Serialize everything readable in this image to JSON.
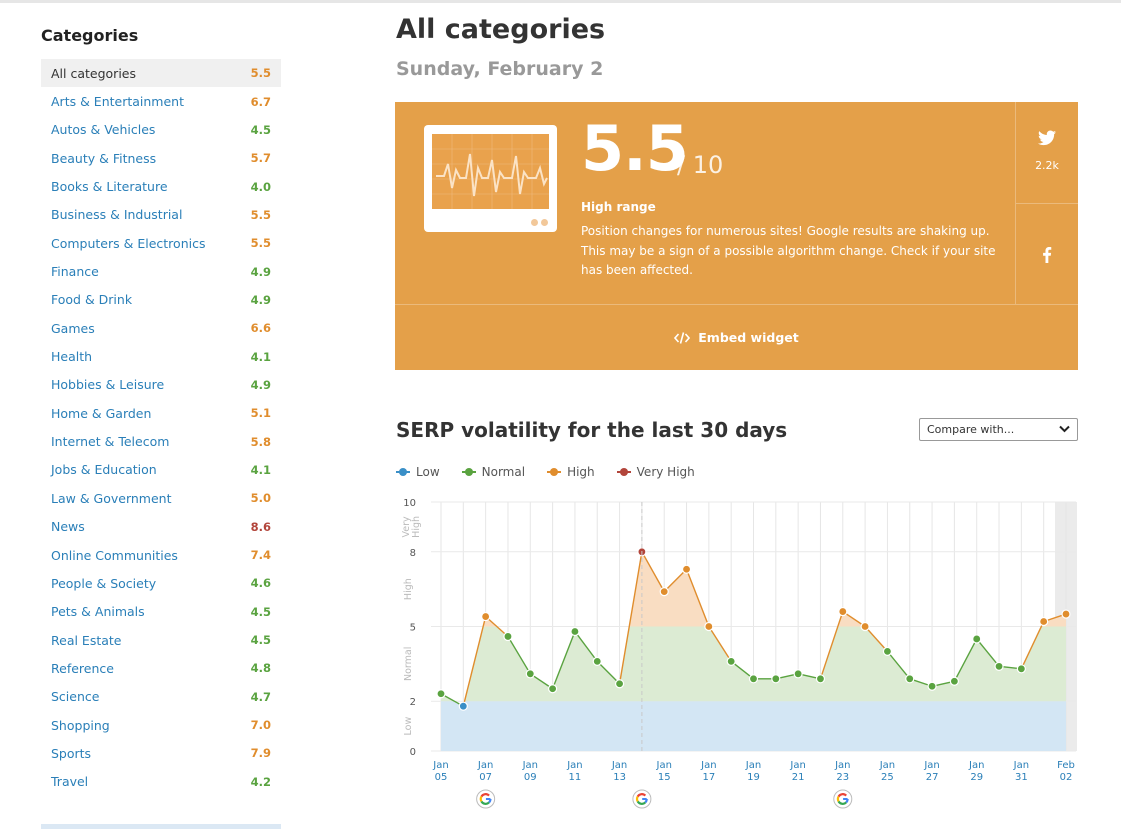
{
  "sidebar": {
    "title": "Categories",
    "items": [
      {
        "label": "All categories",
        "score": "5.5",
        "level": "high",
        "active": true
      },
      {
        "label": "Arts & Entertainment",
        "score": "6.7",
        "level": "high"
      },
      {
        "label": "Autos & Vehicles",
        "score": "4.5",
        "level": "normal"
      },
      {
        "label": "Beauty & Fitness",
        "score": "5.7",
        "level": "high"
      },
      {
        "label": "Books & Literature",
        "score": "4.0",
        "level": "normal"
      },
      {
        "label": "Business & Industrial",
        "score": "5.5",
        "level": "high"
      },
      {
        "label": "Computers & Electronics",
        "score": "5.5",
        "level": "high"
      },
      {
        "label": "Finance",
        "score": "4.9",
        "level": "normal"
      },
      {
        "label": "Food & Drink",
        "score": "4.9",
        "level": "normal"
      },
      {
        "label": "Games",
        "score": "6.6",
        "level": "high"
      },
      {
        "label": "Health",
        "score": "4.1",
        "level": "normal"
      },
      {
        "label": "Hobbies & Leisure",
        "score": "4.9",
        "level": "normal"
      },
      {
        "label": "Home & Garden",
        "score": "5.1",
        "level": "high"
      },
      {
        "label": "Internet & Telecom",
        "score": "5.8",
        "level": "high"
      },
      {
        "label": "Jobs & Education",
        "score": "4.1",
        "level": "normal"
      },
      {
        "label": "Law & Government",
        "score": "5.0",
        "level": "high"
      },
      {
        "label": "News",
        "score": "8.6",
        "level": "veryhigh"
      },
      {
        "label": "Online Communities",
        "score": "7.4",
        "level": "high"
      },
      {
        "label": "People & Society",
        "score": "4.6",
        "level": "normal"
      },
      {
        "label": "Pets & Animals",
        "score": "4.5",
        "level": "normal"
      },
      {
        "label": "Real Estate",
        "score": "4.5",
        "level": "normal"
      },
      {
        "label": "Reference",
        "score": "4.8",
        "level": "normal"
      },
      {
        "label": "Science",
        "score": "4.7",
        "level": "normal"
      },
      {
        "label": "Shopping",
        "score": "7.0",
        "level": "high"
      },
      {
        "label": "Sports",
        "score": "7.9",
        "level": "high"
      },
      {
        "label": "Travel",
        "score": "4.2",
        "level": "normal"
      }
    ]
  },
  "header": {
    "title": "All categories",
    "date": "Sunday, February 2"
  },
  "banner": {
    "score": "5.5",
    "out_of": "/ 10",
    "range_label": "High range",
    "description": "Position changes for numerous sites! Google results are shaking up. This may be a sign of a possible algorithm change. Check if your site has been affected.",
    "twitter_icon": "twitter-icon",
    "twitter_count": "2.2k",
    "facebook_icon": "facebook-icon",
    "embed_label": "Embed widget",
    "embed_icon": "code-icon",
    "monitor_icon": "heart-monitor-icon"
  },
  "volatility": {
    "title": "SERP volatility for the last 30 days",
    "compare_label": "Compare with..."
  },
  "colors": {
    "low": "#3a8fc7",
    "normal": "#5aa340",
    "high": "#e08d2d",
    "veryhigh": "#b2453b",
    "banner": "#e4a049",
    "link": "#2a7fb8"
  },
  "chart_data": {
    "type": "line",
    "legend": [
      {
        "name": "Low",
        "level": "low"
      },
      {
        "name": "Normal",
        "level": "normal"
      },
      {
        "name": "High",
        "level": "high"
      },
      {
        "name": "Very High",
        "level": "veryhigh"
      }
    ],
    "legend_position": "top-left",
    "x": [
      "Jan 05",
      "Jan 06",
      "Jan 07",
      "Jan 08",
      "Jan 09",
      "Jan 10",
      "Jan 11",
      "Jan 12",
      "Jan 13",
      "Jan 14",
      "Jan 15",
      "Jan 16",
      "Jan 17",
      "Jan 18",
      "Jan 19",
      "Jan 20",
      "Jan 21",
      "Jan 22",
      "Jan 23",
      "Jan 24",
      "Jan 25",
      "Jan 26",
      "Jan 27",
      "Jan 28",
      "Jan 29",
      "Jan 30",
      "Jan 31",
      "Feb 01",
      "Feb 02"
    ],
    "values": [
      2.3,
      1.8,
      5.4,
      4.6,
      3.1,
      2.5,
      4.8,
      3.6,
      2.7,
      8.0,
      6.4,
      7.3,
      5.0,
      3.6,
      2.9,
      2.9,
      3.1,
      2.9,
      5.6,
      5.0,
      4.0,
      2.9,
      2.6,
      2.8,
      4.5,
      3.4,
      3.3,
      5.2,
      5.5
    ],
    "x_tick_labels": [
      {
        "top": "Jan",
        "bottom": "05"
      },
      {
        "top": "Jan",
        "bottom": "07"
      },
      {
        "top": "Jan",
        "bottom": "09"
      },
      {
        "top": "Jan",
        "bottom": "11"
      },
      {
        "top": "Jan",
        "bottom": "13"
      },
      {
        "top": "Jan",
        "bottom": "15"
      },
      {
        "top": "Jan",
        "bottom": "17"
      },
      {
        "top": "Jan",
        "bottom": "19"
      },
      {
        "top": "Jan",
        "bottom": "21"
      },
      {
        "top": "Jan",
        "bottom": "23"
      },
      {
        "top": "Jan",
        "bottom": "25"
      },
      {
        "top": "Jan",
        "bottom": "27"
      },
      {
        "top": "Jan",
        "bottom": "29"
      },
      {
        "top": "Jan",
        "bottom": "31"
      },
      {
        "top": "Feb",
        "bottom": "02"
      }
    ],
    "y_ticks": [
      "0",
      "2",
      "5",
      "8",
      "10"
    ],
    "y_bands": [
      {
        "label": "Low",
        "from": 0,
        "to": 2,
        "level": "low"
      },
      {
        "label": "Normal",
        "from": 2,
        "to": 5,
        "level": "normal"
      },
      {
        "label": "High",
        "from": 5,
        "to": 8,
        "level": "high"
      },
      {
        "label": "Very High",
        "from": 8,
        "to": 10,
        "level": "veryhigh"
      }
    ],
    "google_update_dates": [
      "Jan 07",
      "Jan 14",
      "Jan 23"
    ],
    "google_icon": "google-icon",
    "ylim": [
      0,
      10
    ]
  }
}
